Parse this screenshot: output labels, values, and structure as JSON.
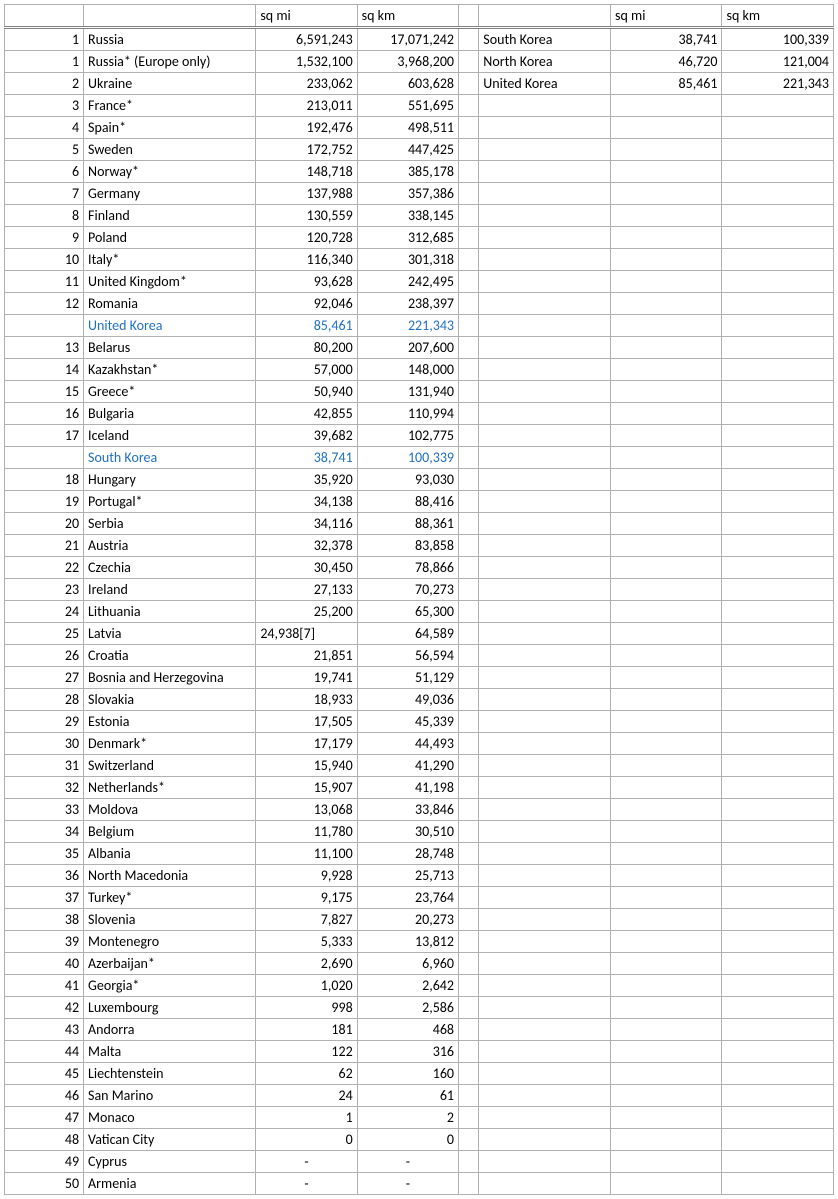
{
  "headers": {
    "sqmi": "sq mi",
    "sqkm": "sq km"
  },
  "dash": "-",
  "korea": [
    {
      "name": "South Korea",
      "sqmi": "38,741",
      "sqkm": "100,339"
    },
    {
      "name": "North Korea",
      "sqmi": "46,720",
      "sqkm": "121,004"
    },
    {
      "name": "United Korea",
      "sqmi": "85,461",
      "sqkm": "221,343"
    }
  ],
  "rows": [
    {
      "rank": "1",
      "name": "Russia",
      "sqmi": "6,591,243",
      "sqkm": "17,071,242"
    },
    {
      "rank": "1",
      "name": "Russia* (Europe only)",
      "sqmi": "1,532,100",
      "sqkm": "3,968,200"
    },
    {
      "rank": "2",
      "name": "Ukraine",
      "sqmi": "233,062",
      "sqkm": "603,628"
    },
    {
      "rank": "3",
      "name": "France*",
      "sqmi": "213,011",
      "sqkm": "551,695"
    },
    {
      "rank": "4",
      "name": "Spain*",
      "sqmi": "192,476",
      "sqkm": "498,511"
    },
    {
      "rank": "5",
      "name": "Sweden",
      "sqmi": "172,752",
      "sqkm": "447,425"
    },
    {
      "rank": "6",
      "name": "Norway*",
      "sqmi": "148,718",
      "sqkm": "385,178"
    },
    {
      "rank": "7",
      "name": "Germany",
      "sqmi": "137,988",
      "sqkm": "357,386"
    },
    {
      "rank": "8",
      "name": "Finland",
      "sqmi": "130,559",
      "sqkm": "338,145"
    },
    {
      "rank": "9",
      "name": "Poland",
      "sqmi": "120,728",
      "sqkm": "312,685"
    },
    {
      "rank": "10",
      "name": "Italy*",
      "sqmi": "116,340",
      "sqkm": "301,318"
    },
    {
      "rank": "11",
      "name": "United Kingdom*",
      "sqmi": "93,628",
      "sqkm": "242,495"
    },
    {
      "rank": "12",
      "name": "Romania",
      "sqmi": "92,046",
      "sqkm": "238,397"
    },
    {
      "rank": "",
      "name": "United Korea",
      "sqmi": "85,461",
      "sqkm": "221,343",
      "highlight": true
    },
    {
      "rank": "13",
      "name": "Belarus",
      "sqmi": "80,200",
      "sqkm": "207,600"
    },
    {
      "rank": "14",
      "name": "Kazakhstan*",
      "sqmi": "57,000",
      "sqkm": "148,000"
    },
    {
      "rank": "15",
      "name": "Greece*",
      "sqmi": "50,940",
      "sqkm": "131,940"
    },
    {
      "rank": "16",
      "name": "Bulgaria",
      "sqmi": "42,855",
      "sqkm": "110,994"
    },
    {
      "rank": "17",
      "name": "Iceland",
      "sqmi": "39,682",
      "sqkm": "102,775"
    },
    {
      "rank": "",
      "name": "South Korea",
      "sqmi": "38,741",
      "sqkm": "100,339",
      "highlight": true
    },
    {
      "rank": "18",
      "name": "Hungary",
      "sqmi": "35,920",
      "sqkm": "93,030"
    },
    {
      "rank": "19",
      "name": "Portugal*",
      "sqmi": "34,138",
      "sqkm": "88,416"
    },
    {
      "rank": "20",
      "name": "Serbia",
      "sqmi": "34,116",
      "sqkm": "88,361"
    },
    {
      "rank": "21",
      "name": "Austria",
      "sqmi": "32,378",
      "sqkm": "83,858"
    },
    {
      "rank": "22",
      "name": "Czechia",
      "sqmi": "30,450",
      "sqkm": "78,866"
    },
    {
      "rank": "23",
      "name": "Ireland",
      "sqmi": "27,133",
      "sqkm": "70,273"
    },
    {
      "rank": "24",
      "name": "Lithuania",
      "sqmi": "25,200",
      "sqkm": "65,300"
    },
    {
      "rank": "25",
      "name": "Latvia",
      "sqmi": "24,938[7]",
      "sqkm": "64,589",
      "mi_left": true
    },
    {
      "rank": "26",
      "name": "Croatia",
      "sqmi": "21,851",
      "sqkm": "56,594"
    },
    {
      "rank": "27",
      "name": "Bosnia and Herzegovina",
      "sqmi": "19,741",
      "sqkm": "51,129"
    },
    {
      "rank": "28",
      "name": "Slovakia",
      "sqmi": "18,933",
      "sqkm": "49,036"
    },
    {
      "rank": "29",
      "name": "Estonia",
      "sqmi": "17,505",
      "sqkm": "45,339"
    },
    {
      "rank": "30",
      "name": "Denmark*",
      "sqmi": "17,179",
      "sqkm": "44,493"
    },
    {
      "rank": "31",
      "name": "Switzerland",
      "sqmi": "15,940",
      "sqkm": "41,290"
    },
    {
      "rank": "32",
      "name": "Netherlands*",
      "sqmi": "15,907",
      "sqkm": "41,198"
    },
    {
      "rank": "33",
      "name": "Moldova",
      "sqmi": "13,068",
      "sqkm": "33,846"
    },
    {
      "rank": "34",
      "name": "Belgium",
      "sqmi": "11,780",
      "sqkm": "30,510"
    },
    {
      "rank": "35",
      "name": "Albania",
      "sqmi": "11,100",
      "sqkm": "28,748"
    },
    {
      "rank": "36",
      "name": "North Macedonia",
      "sqmi": "9,928",
      "sqkm": "25,713"
    },
    {
      "rank": "37",
      "name": "Turkey*",
      "sqmi": "9,175",
      "sqkm": "23,764"
    },
    {
      "rank": "38",
      "name": "Slovenia",
      "sqmi": "7,827",
      "sqkm": "20,273"
    },
    {
      "rank": "39",
      "name": "Montenegro",
      "sqmi": "5,333",
      "sqkm": "13,812"
    },
    {
      "rank": "40",
      "name": "Azerbaijan*",
      "sqmi": "2,690",
      "sqkm": "6,960"
    },
    {
      "rank": "41",
      "name": "Georgia*",
      "sqmi": "1,020",
      "sqkm": "2,642"
    },
    {
      "rank": "42",
      "name": "Luxembourg",
      "sqmi": "998",
      "sqkm": "2,586"
    },
    {
      "rank": "43",
      "name": "Andorra",
      "sqmi": "181",
      "sqkm": "468"
    },
    {
      "rank": "44",
      "name": "Malta",
      "sqmi": "122",
      "sqkm": "316"
    },
    {
      "rank": "45",
      "name": "Liechtenstein",
      "sqmi": "62",
      "sqkm": "160"
    },
    {
      "rank": "46",
      "name": "San Marino",
      "sqmi": "24",
      "sqkm": "61"
    },
    {
      "rank": "47",
      "name": "Monaco",
      "sqmi": "1",
      "sqkm": "2"
    },
    {
      "rank": "48",
      "name": "Vatican City",
      "sqmi": "0",
      "sqkm": "0"
    },
    {
      "rank": "49",
      "name": "Cyprus",
      "sqmi": "-",
      "sqkm": "-",
      "center": true
    },
    {
      "rank": "50",
      "name": "Armenia",
      "sqmi": "-",
      "sqkm": "-",
      "center": true
    }
  ]
}
